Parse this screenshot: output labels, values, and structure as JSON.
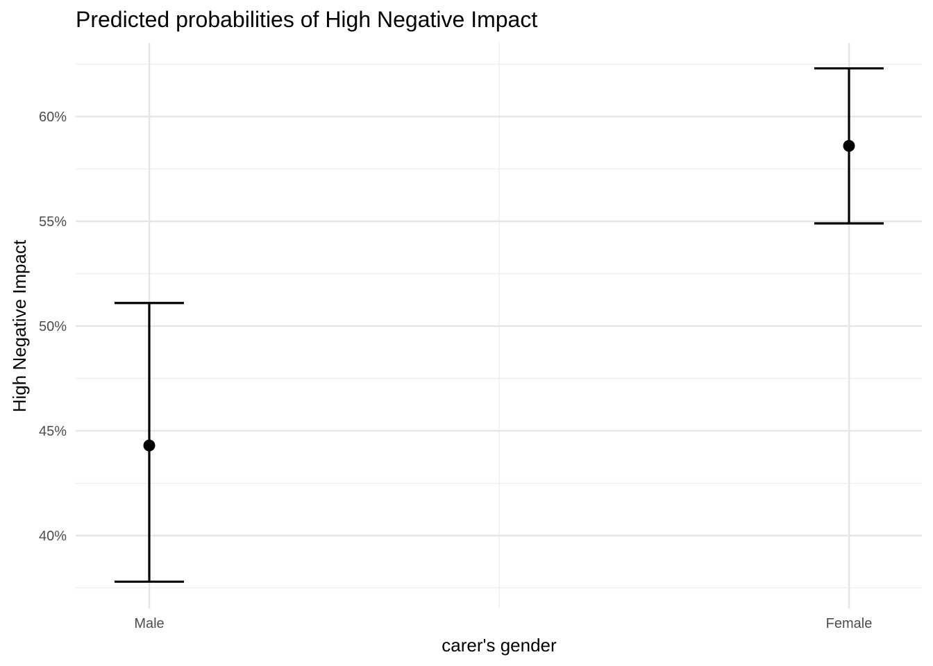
{
  "chart_data": {
    "type": "scatter",
    "title": "Predicted probabilities of High Negative Impact",
    "xlabel": "carer's gender",
    "ylabel": "High Negative Impact",
    "categories": [
      "Male",
      "Female"
    ],
    "series": [
      {
        "values": [
          44.3,
          58.6
        ],
        "lower": [
          37.8,
          54.9
        ],
        "upper": [
          51.1,
          62.3
        ]
      }
    ],
    "ylim": [
      37.5,
      63.0
    ],
    "y_ticks": [
      40,
      45,
      50,
      55,
      60
    ],
    "y_tick_labels": [
      "40%",
      "45%",
      "50%",
      "55%",
      "60%"
    ],
    "grid": true,
    "legend": "none",
    "colors": {
      "point": "#000000",
      "errorbar": "#000000",
      "grid_major": "#e5e5e5",
      "grid_minor": "#efefef",
      "tick_text": "#4d4d4d"
    }
  }
}
